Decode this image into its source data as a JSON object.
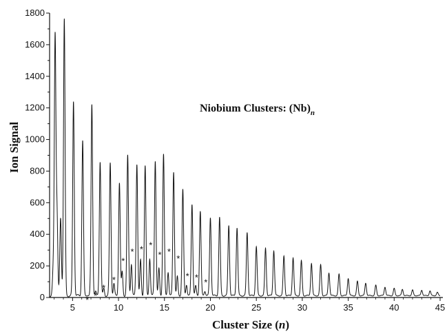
{
  "chart_data": {
    "type": "line",
    "annotation": {
      "text": "Niobium Clusters: (Nb)",
      "subscript": "n"
    },
    "xlabel": {
      "text": "Cluster Size (",
      "italic": "n",
      "suffix": ")"
    },
    "ylabel": "Ion Signal",
    "xlim": [
      2.5,
      45.3
    ],
    "ylim": [
      0,
      1800
    ],
    "xticks": [
      5,
      10,
      15,
      20,
      25,
      30,
      35,
      40,
      45
    ],
    "yticks": [
      0,
      200,
      400,
      600,
      800,
      1000,
      1200,
      1400,
      1600,
      1800
    ],
    "grid": false,
    "peaks": {
      "x": [
        2.9,
        3.1,
        3.3,
        3.7,
        4.1,
        5.1,
        6.1,
        7.1,
        8.0,
        9.1,
        10.1,
        11.0,
        12.0,
        12.9,
        14.0,
        14.9,
        16.0,
        17.0,
        18.0,
        18.9,
        20.0,
        21.0,
        22.0,
        22.9,
        24.0,
        25.0,
        26.0,
        26.9,
        28.0,
        29.0,
        29.9,
        31.0,
        32.0,
        32.9,
        34.0,
        35.0,
        36.0,
        36.9,
        38.0,
        39.0,
        40.0,
        40.9,
        42.0,
        43.0,
        43.9,
        44.7
      ],
      "values": [
        160,
        1630,
        520,
        490,
        1750,
        1230,
        980,
        1210,
        850,
        840,
        715,
        885,
        835,
        820,
        855,
        895,
        785,
        670,
        580,
        535,
        495,
        495,
        445,
        430,
        400,
        310,
        300,
        285,
        250,
        240,
        220,
        205,
        195,
        145,
        135,
        110,
        90,
        80,
        65,
        55,
        45,
        40,
        35,
        35,
        30,
        20
      ]
    },
    "satellites": {
      "x": [
        6.6,
        7.5,
        8.4,
        9.5,
        10.4,
        11.4,
        12.4,
        13.4,
        14.4,
        15.4,
        16.4,
        17.4,
        18.4,
        19.4
      ],
      "values": [
        5,
        25,
        45,
        75,
        150,
        200,
        225,
        235,
        170,
        150,
        120,
        70,
        60,
        30
      ]
    },
    "markers": {
      "symbol": "*",
      "x": [
        6.6,
        7.5,
        8.4,
        9.5,
        10.5,
        11.5,
        12.5,
        13.5,
        14.5,
        15.5,
        16.5,
        17.5,
        18.5,
        19.5
      ],
      "y": [
        5,
        30,
        80,
        130,
        250,
        310,
        325,
        350,
        290,
        310,
        265,
        155,
        145,
        115
      ]
    }
  }
}
